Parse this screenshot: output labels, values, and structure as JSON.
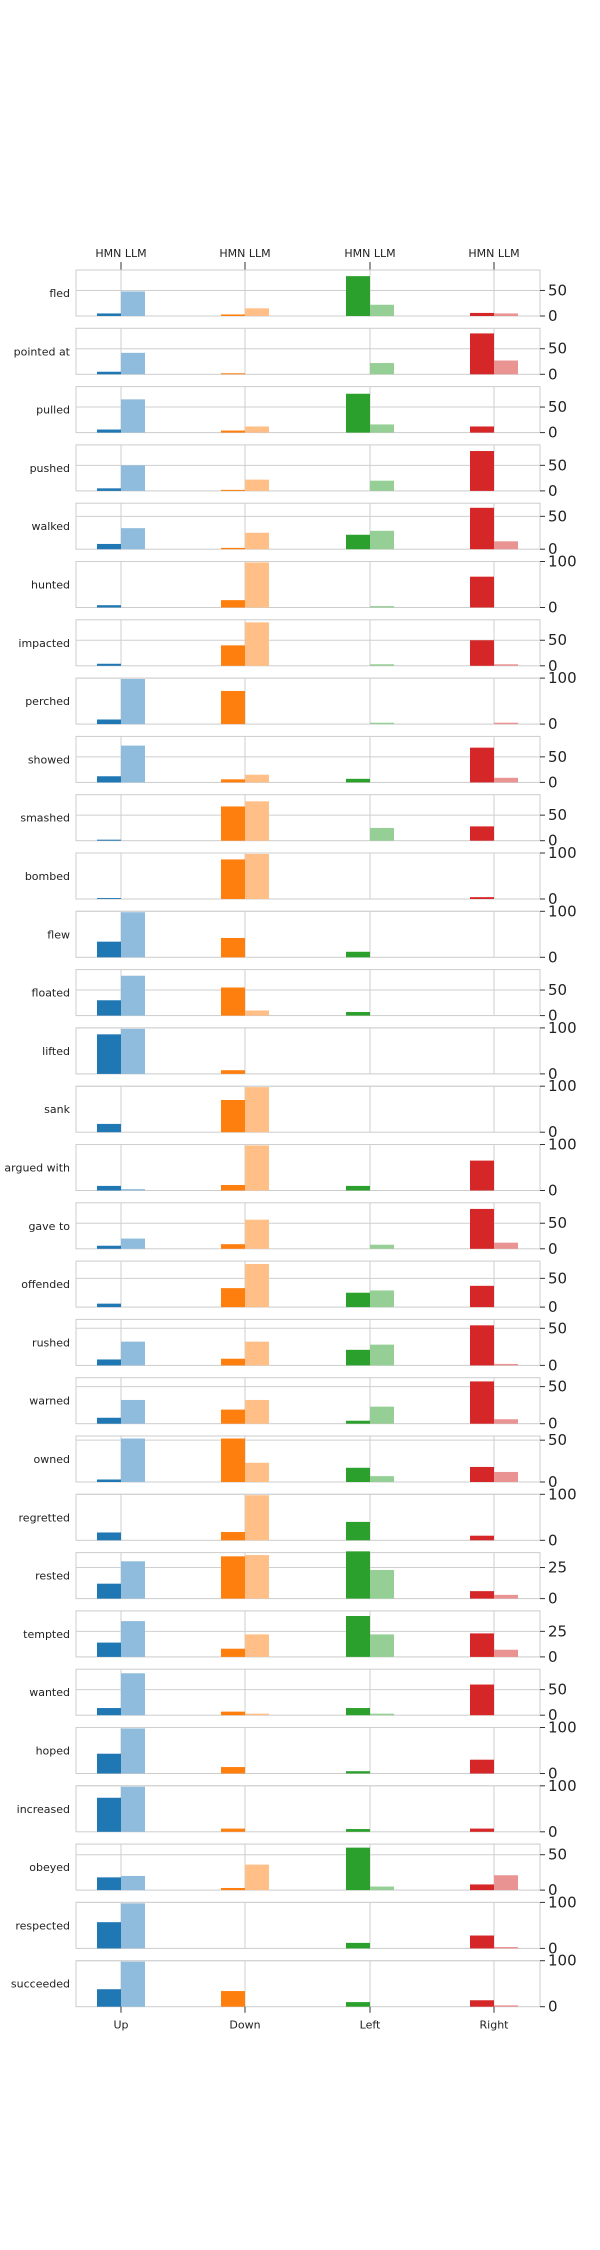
{
  "chart_data": {
    "type": "bar",
    "categories": [
      "Up",
      "Down",
      "Left",
      "Right"
    ],
    "top_labels": [
      "HMN LLM",
      "HMN LLM",
      "HMN LLM",
      "HMN LLM"
    ],
    "series_names": [
      "HMN",
      "LLM"
    ],
    "colors": {
      "Up": [
        "#1f77b4",
        "#8fbbdc"
      ],
      "Down": [
        "#ff7f0e",
        "#ffbf86"
      ],
      "Left": [
        "#2ca02c",
        "#95cf95"
      ],
      "Right": [
        "#d62728",
        "#ea9393"
      ]
    },
    "panels": [
      {
        "verb": "fled",
        "ylim": [
          0,
          90
        ],
        "ticks": [
          0,
          50
        ],
        "hmn": [
          5,
          3,
          78,
          6
        ],
        "llm": [
          48,
          15,
          22,
          5
        ]
      },
      {
        "verb": "pointed at",
        "ylim": [
          0,
          90
        ],
        "ticks": [
          0,
          50
        ],
        "hmn": [
          5,
          2,
          0,
          80
        ],
        "llm": [
          42,
          0,
          22,
          27
        ]
      },
      {
        "verb": "pulled",
        "ylim": [
          0,
          90
        ],
        "ticks": [
          0,
          50
        ],
        "hmn": [
          6,
          4,
          76,
          12
        ],
        "llm": [
          65,
          12,
          16,
          0
        ]
      },
      {
        "verb": "pushed",
        "ylim": [
          0,
          90
        ],
        "ticks": [
          0,
          50
        ],
        "hmn": [
          5,
          2,
          0,
          78
        ],
        "llm": [
          50,
          22,
          20,
          0
        ]
      },
      {
        "verb": "walked",
        "ylim": [
          0,
          70
        ],
        "ticks": [
          0,
          50
        ],
        "hmn": [
          8,
          2,
          22,
          63
        ],
        "llm": [
          32,
          25,
          28,
          12
        ]
      },
      {
        "verb": "hunted",
        "ylim": [
          0,
          100
        ],
        "ticks": [
          0,
          100
        ],
        "hmn": [
          5,
          16,
          0,
          67
        ],
        "llm": [
          0,
          98,
          3,
          0
        ]
      },
      {
        "verb": "impacted",
        "ylim": [
          0,
          90
        ],
        "ticks": [
          0,
          50
        ],
        "hmn": [
          4,
          40,
          0,
          50
        ],
        "llm": [
          0,
          85,
          3,
          3
        ]
      },
      {
        "verb": "perched",
        "ylim": [
          0,
          100
        ],
        "ticks": [
          0,
          100
        ],
        "hmn": [
          10,
          72,
          0,
          0
        ],
        "llm": [
          98,
          0,
          3,
          3
        ]
      },
      {
        "verb": "showed",
        "ylim": [
          0,
          90
        ],
        "ticks": [
          0,
          50
        ],
        "hmn": [
          12,
          6,
          7,
          68
        ],
        "llm": [
          72,
          15,
          0,
          9
        ]
      },
      {
        "verb": "smashed",
        "ylim": [
          0,
          90
        ],
        "ticks": [
          0,
          50
        ],
        "hmn": [
          2,
          67,
          0,
          28
        ],
        "llm": [
          0,
          77,
          25,
          0
        ]
      },
      {
        "verb": "bombed",
        "ylim": [
          0,
          100
        ],
        "ticks": [
          0,
          100
        ],
        "hmn": [
          2,
          86,
          0,
          4
        ],
        "llm": [
          0,
          98,
          0,
          0
        ]
      },
      {
        "verb": "flew",
        "ylim": [
          0,
          100
        ],
        "ticks": [
          0,
          100
        ],
        "hmn": [
          34,
          42,
          12,
          0
        ],
        "llm": [
          98,
          0,
          0,
          0
        ]
      },
      {
        "verb": "floated",
        "ylim": [
          0,
          90
        ],
        "ticks": [
          0,
          50
        ],
        "hmn": [
          30,
          55,
          7,
          0
        ],
        "llm": [
          78,
          10,
          0,
          0
        ]
      },
      {
        "verb": "lifted",
        "ylim": [
          0,
          100
        ],
        "ticks": [
          0,
          100
        ],
        "hmn": [
          86,
          8,
          0,
          0
        ],
        "llm": [
          98,
          0,
          0,
          0
        ]
      },
      {
        "verb": "sank",
        "ylim": [
          0,
          100
        ],
        "ticks": [
          0,
          100
        ],
        "hmn": [
          18,
          70,
          0,
          0
        ],
        "llm": [
          0,
          98,
          0,
          0
        ]
      },
      {
        "verb": "argued with",
        "ylim": [
          0,
          100
        ],
        "ticks": [
          0,
          100
        ],
        "hmn": [
          10,
          12,
          10,
          65
        ],
        "llm": [
          3,
          98,
          0,
          0
        ]
      },
      {
        "verb": "gave to",
        "ylim": [
          0,
          90
        ],
        "ticks": [
          0,
          50
        ],
        "hmn": [
          6,
          9,
          0,
          78
        ],
        "llm": [
          20,
          57,
          8,
          12
        ]
      },
      {
        "verb": "offended",
        "ylim": [
          0,
          80
        ],
        "ticks": [
          0,
          50
        ],
        "hmn": [
          6,
          33,
          25,
          37
        ],
        "llm": [
          0,
          75,
          29,
          0
        ]
      },
      {
        "verb": "rushed",
        "ylim": [
          0,
          62
        ],
        "ticks": [
          0,
          50
        ],
        "hmn": [
          8,
          9,
          21,
          54
        ],
        "llm": [
          32,
          32,
          28,
          2
        ]
      },
      {
        "verb": "warned",
        "ylim": [
          0,
          62
        ],
        "ticks": [
          0,
          50
        ],
        "hmn": [
          8,
          19,
          4,
          57
        ],
        "llm": [
          32,
          32,
          23,
          6
        ]
      },
      {
        "verb": "owned",
        "ylim": [
          0,
          55
        ],
        "ticks": [
          0,
          50
        ],
        "hmn": [
          3,
          52,
          17,
          18
        ],
        "llm": [
          52,
          23,
          7,
          12
        ]
      },
      {
        "verb": "regretted",
        "ylim": [
          0,
          100
        ],
        "ticks": [
          0,
          100
        ],
        "hmn": [
          17,
          18,
          40,
          10
        ],
        "llm": [
          0,
          98,
          0,
          0
        ]
      },
      {
        "verb": "rested",
        "ylim": [
          0,
          37
        ],
        "ticks": [
          0,
          25
        ],
        "hmn": [
          12,
          34,
          38,
          6
        ],
        "llm": [
          30,
          35,
          23,
          3
        ]
      },
      {
        "verb": "tempted",
        "ylim": [
          0,
          45
        ],
        "ticks": [
          0,
          25
        ],
        "hmn": [
          14,
          8,
          40,
          23
        ],
        "llm": [
          35,
          22,
          22,
          7
        ]
      },
      {
        "verb": "wanted",
        "ylim": [
          0,
          90
        ],
        "ticks": [
          0,
          50
        ],
        "hmn": [
          14,
          7,
          14,
          60
        ],
        "llm": [
          82,
          3,
          3,
          0
        ]
      },
      {
        "verb": "hoped",
        "ylim": [
          0,
          100
        ],
        "ticks": [
          0,
          100
        ],
        "hmn": [
          43,
          14,
          5,
          30
        ],
        "llm": [
          98,
          0,
          0,
          0
        ]
      },
      {
        "verb": "increased",
        "ylim": [
          0,
          100
        ],
        "ticks": [
          0,
          100
        ],
        "hmn": [
          74,
          7,
          6,
          7
        ],
        "llm": [
          98,
          0,
          0,
          0
        ]
      },
      {
        "verb": "obeyed",
        "ylim": [
          0,
          65
        ],
        "ticks": [
          0,
          50
        ],
        "hmn": [
          18,
          3,
          60,
          8
        ],
        "llm": [
          20,
          36,
          5,
          21
        ]
      },
      {
        "verb": "respected",
        "ylim": [
          0,
          100
        ],
        "ticks": [
          0,
          100
        ],
        "hmn": [
          57,
          0,
          12,
          28
        ],
        "llm": [
          98,
          0,
          0,
          3
        ]
      },
      {
        "verb": "succeeded",
        "ylim": [
          0,
          100
        ],
        "ticks": [
          0,
          100
        ],
        "hmn": [
          38,
          34,
          10,
          14
        ],
        "llm": [
          98,
          0,
          0,
          3
        ]
      }
    ]
  }
}
